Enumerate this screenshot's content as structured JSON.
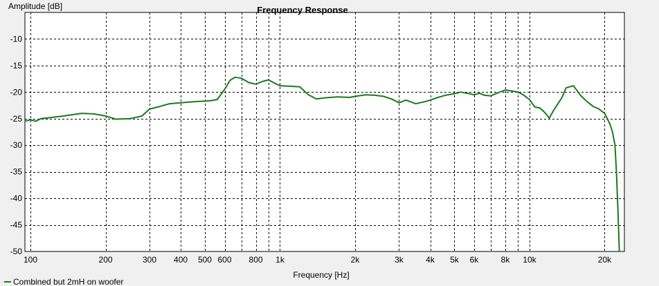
{
  "chart_data": {
    "type": "line",
    "title": "Frequency Response",
    "xlabel": "Frequency [Hz]",
    "ylabel": "Amplitude [dB]",
    "x_scale": "log",
    "xlim": [
      95,
      24000
    ],
    "ylim": [
      -50,
      -5
    ],
    "x_ticks": [
      {
        "value": 100,
        "label": "100"
      },
      {
        "value": 200,
        "label": "200"
      },
      {
        "value": 300,
        "label": "300"
      },
      {
        "value": 400,
        "label": "400"
      },
      {
        "value": 500,
        "label": "500"
      },
      {
        "value": 600,
        "label": "600"
      },
      {
        "value": 800,
        "label": "800"
      },
      {
        "value": 1000,
        "label": "1k"
      },
      {
        "value": 2000,
        "label": "2k"
      },
      {
        "value": 3000,
        "label": "3k"
      },
      {
        "value": 4000,
        "label": "4k"
      },
      {
        "value": 5000,
        "label": "5k"
      },
      {
        "value": 6000,
        "label": "6k"
      },
      {
        "value": 8000,
        "label": "8k"
      },
      {
        "value": 10000,
        "label": "10k"
      },
      {
        "value": 20000,
        "label": "20k"
      }
    ],
    "x_gridlines": [
      100,
      200,
      300,
      400,
      500,
      600,
      700,
      800,
      900,
      1000,
      2000,
      3000,
      4000,
      5000,
      6000,
      7000,
      8000,
      9000,
      10000,
      20000
    ],
    "y_ticks": [
      -10,
      -15,
      -20,
      -25,
      -30,
      -35,
      -40,
      -45,
      -50
    ],
    "grid": true,
    "legend_position": "bottom-left",
    "series": [
      {
        "name": "Combined but 2mH on woofer",
        "color": "#1a7a1a",
        "x": [
          95,
          100,
          105,
          110,
          120,
          130,
          140,
          150,
          160,
          180,
          200,
          220,
          250,
          280,
          300,
          330,
          360,
          400,
          450,
          500,
          530,
          560,
          600,
          630,
          660,
          700,
          750,
          800,
          850,
          900,
          950,
          1000,
          1100,
          1200,
          1300,
          1400,
          1500,
          1700,
          1900,
          2000,
          2200,
          2400,
          2600,
          2800,
          3000,
          3200,
          3500,
          3800,
          4000,
          4300,
          4600,
          5000,
          5300,
          5600,
          6000,
          6300,
          6600,
          7000,
          7500,
          8000,
          8500,
          9000,
          9500,
          10000,
          10500,
          11000,
          11500,
          12000,
          12500,
          13000,
          13500,
          14000,
          15000,
          16000,
          17000,
          18000,
          19000,
          20000,
          20500,
          21000,
          21500,
          22000,
          22300,
          22600,
          22900
        ],
        "y": [
          -25.5,
          -25.2,
          -25.5,
          -25.0,
          -24.8,
          -24.6,
          -24.4,
          -24.2,
          -24.0,
          -24.1,
          -24.5,
          -25.1,
          -25.0,
          -24.5,
          -23.2,
          -22.7,
          -22.2,
          -22.0,
          -21.8,
          -21.7,
          -21.6,
          -21.4,
          -19.5,
          -17.8,
          -17.2,
          -17.4,
          -18.2,
          -18.5,
          -18.0,
          -17.7,
          -18.3,
          -18.8,
          -18.9,
          -19.0,
          -20.5,
          -21.3,
          -21.1,
          -20.9,
          -21.0,
          -20.8,
          -20.5,
          -20.6,
          -20.8,
          -21.3,
          -22.0,
          -21.5,
          -22.2,
          -21.8,
          -21.5,
          -21.0,
          -20.6,
          -20.3,
          -20.0,
          -20.2,
          -20.5,
          -20.2,
          -20.6,
          -20.7,
          -20.1,
          -19.6,
          -19.8,
          -20.0,
          -20.6,
          -21.4,
          -22.8,
          -23.0,
          -23.8,
          -24.9,
          -23.4,
          -22.2,
          -21.0,
          -19.2,
          -18.8,
          -20.6,
          -21.8,
          -22.7,
          -23.2,
          -24.0,
          -25.0,
          -26.0,
          -27.5,
          -30.0,
          -35.0,
          -42.0,
          -50.0
        ]
      }
    ]
  }
}
